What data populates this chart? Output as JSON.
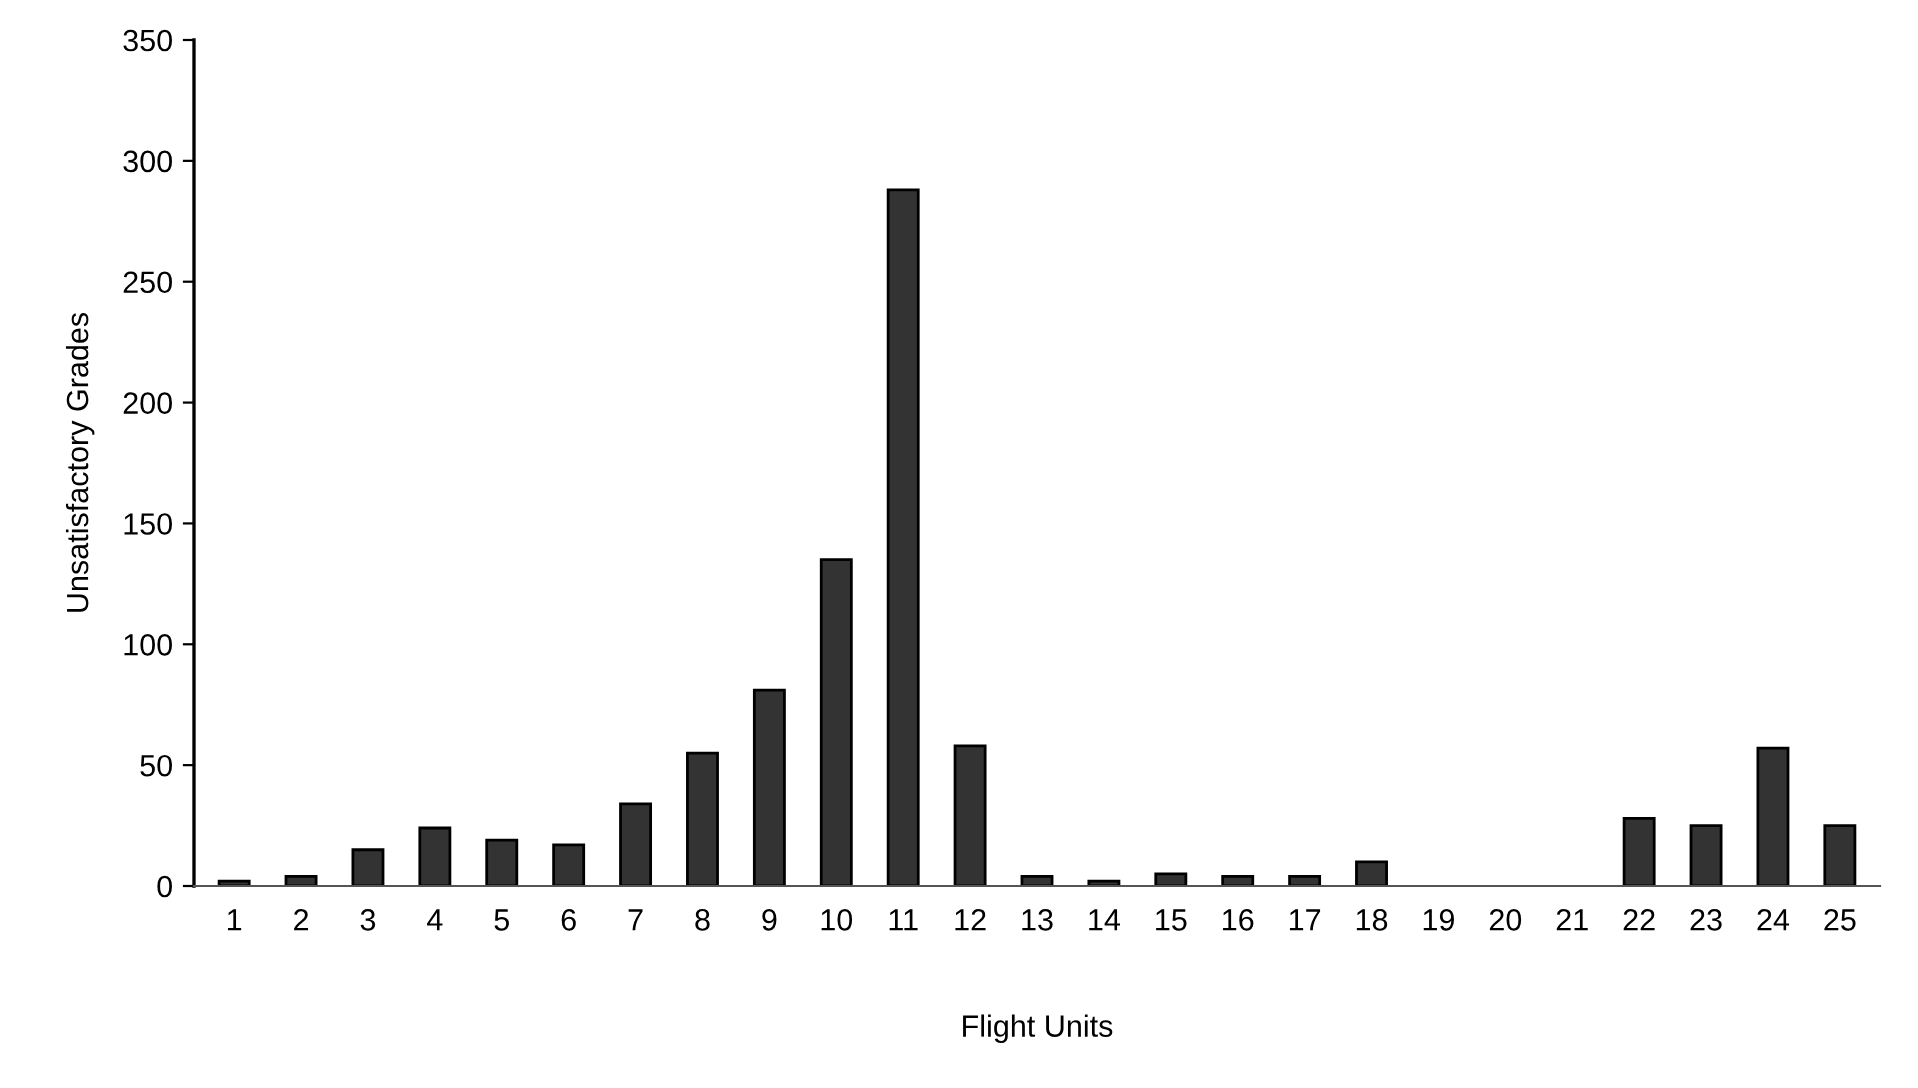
{
  "chart_data": {
    "type": "bar",
    "xlabel": "Flight Units",
    "ylabel": "Unsatisfactory Grades",
    "categories": [
      "1",
      "2",
      "3",
      "4",
      "5",
      "6",
      "7",
      "8",
      "9",
      "10",
      "11",
      "12",
      "13",
      "14",
      "15",
      "16",
      "17",
      "18",
      "19",
      "20",
      "21",
      "22",
      "23",
      "24",
      "25"
    ],
    "values": [
      2,
      4,
      15,
      24,
      19,
      17,
      34,
      55,
      81,
      135,
      288,
      58,
      4,
      2,
      5,
      4,
      4,
      10,
      0,
      0,
      0,
      28,
      25,
      57,
      25
    ],
    "color": "#333333",
    "ylim": [
      0,
      350
    ],
    "yticks": [
      0,
      50,
      100,
      150,
      200,
      250,
      300,
      350
    ],
    "grid": false,
    "legend": false
  }
}
